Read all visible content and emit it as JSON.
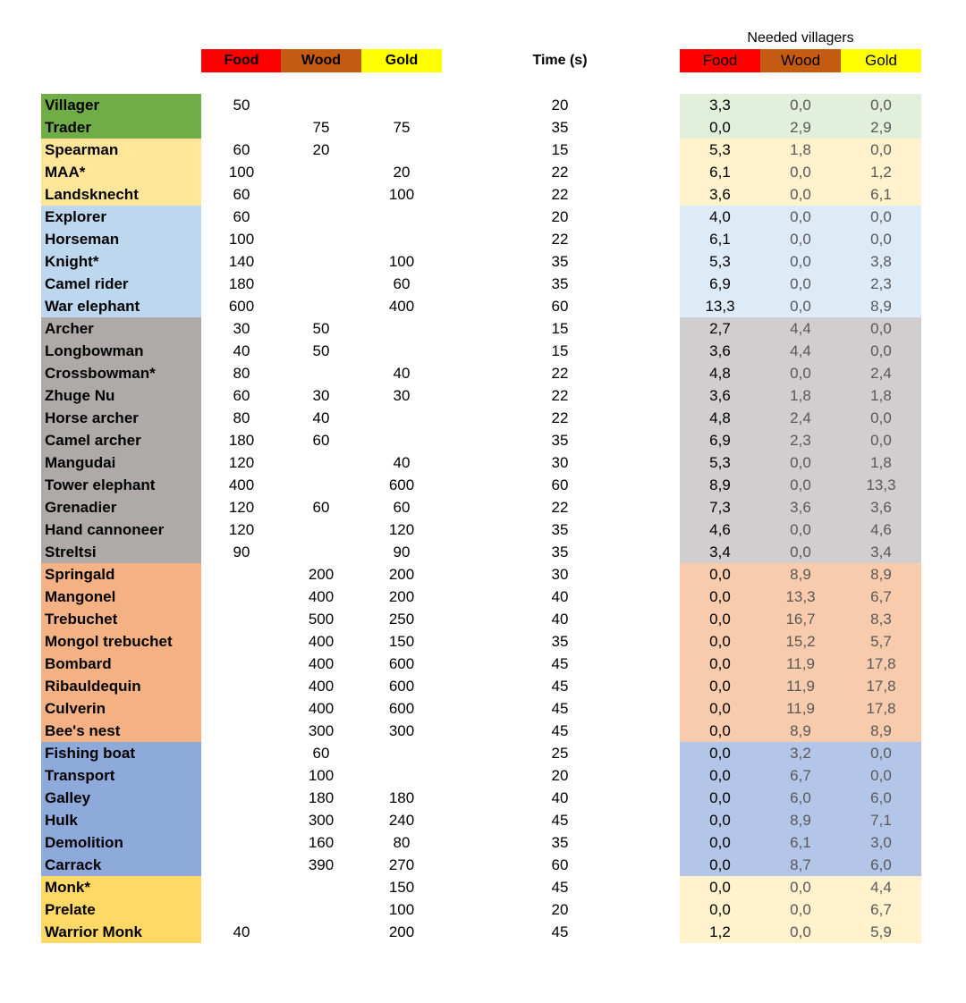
{
  "headers": {
    "food": "Food",
    "wood": "Wood",
    "gold": "Gold",
    "time": "Time (s)",
    "needed_villagers": "Needed villagers"
  },
  "groups": {
    "economy": {
      "name_color": "#70ad47",
      "right_color": "#e2efda"
    },
    "infantry": {
      "name_color": "#ffe699",
      "right_color": "#fff2cc"
    },
    "cavalry": {
      "name_color": "#bdd7ee",
      "right_color": "#ddebf7"
    },
    "ranged": {
      "name_color": "#aeaaaa",
      "right_color": "#d0cece"
    },
    "siege": {
      "name_color": "#f4b183",
      "right_color": "#f8cbad"
    },
    "naval": {
      "name_color": "#8eaadb",
      "right_color": "#b4c6e7"
    },
    "religious": {
      "name_color": "#ffd966",
      "right_color": "#fff2cc"
    }
  },
  "units": [
    {
      "name": "Villager",
      "group": "economy",
      "food": "50",
      "wood": "",
      "gold": "",
      "time": "20",
      "v_food": "3,3",
      "v_wood": "0,0",
      "v_gold": "0,0"
    },
    {
      "name": "Trader",
      "group": "economy",
      "food": "",
      "wood": "75",
      "gold": "75",
      "time": "35",
      "v_food": "0,0",
      "v_wood": "2,9",
      "v_gold": "2,9"
    },
    {
      "name": "Spearman",
      "group": "infantry",
      "food": "60",
      "wood": "20",
      "gold": "",
      "time": "15",
      "v_food": "5,3",
      "v_wood": "1,8",
      "v_gold": "0,0"
    },
    {
      "name": "MAA*",
      "group": "infantry",
      "food": "100",
      "wood": "",
      "gold": "20",
      "time": "22",
      "v_food": "6,1",
      "v_wood": "0,0",
      "v_gold": "1,2"
    },
    {
      "name": "Landsknecht",
      "group": "infantry",
      "food": "60",
      "wood": "",
      "gold": "100",
      "time": "22",
      "v_food": "3,6",
      "v_wood": "0,0",
      "v_gold": "6,1"
    },
    {
      "name": "Explorer",
      "group": "cavalry",
      "food": "60",
      "wood": "",
      "gold": "",
      "time": "20",
      "v_food": "4,0",
      "v_wood": "0,0",
      "v_gold": "0,0"
    },
    {
      "name": "Horseman",
      "group": "cavalry",
      "food": "100",
      "wood": "",
      "gold": "",
      "time": "22",
      "v_food": "6,1",
      "v_wood": "0,0",
      "v_gold": "0,0"
    },
    {
      "name": "Knight*",
      "group": "cavalry",
      "food": "140",
      "wood": "",
      "gold": "100",
      "time": "35",
      "v_food": "5,3",
      "v_wood": "0,0",
      "v_gold": "3,8"
    },
    {
      "name": "Camel rider",
      "group": "cavalry",
      "food": "180",
      "wood": "",
      "gold": "60",
      "time": "35",
      "v_food": "6,9",
      "v_wood": "0,0",
      "v_gold": "2,3"
    },
    {
      "name": "War elephant",
      "group": "cavalry",
      "food": "600",
      "wood": "",
      "gold": "400",
      "time": "60",
      "v_food": "13,3",
      "v_wood": "0,0",
      "v_gold": "8,9"
    },
    {
      "name": "Archer",
      "group": "ranged",
      "food": "30",
      "wood": "50",
      "gold": "",
      "time": "15",
      "v_food": "2,7",
      "v_wood": "4,4",
      "v_gold": "0,0"
    },
    {
      "name": "Longbowman",
      "group": "ranged",
      "food": "40",
      "wood": "50",
      "gold": "",
      "time": "15",
      "v_food": "3,6",
      "v_wood": "4,4",
      "v_gold": "0,0"
    },
    {
      "name": "Crossbowman*",
      "group": "ranged",
      "food": "80",
      "wood": "",
      "gold": "40",
      "time": "22",
      "v_food": "4,8",
      "v_wood": "0,0",
      "v_gold": "2,4"
    },
    {
      "name": "Zhuge Nu",
      "group": "ranged",
      "food": "60",
      "wood": "30",
      "gold": "30",
      "time": "22",
      "v_food": "3,6",
      "v_wood": "1,8",
      "v_gold": "1,8"
    },
    {
      "name": "Horse archer",
      "group": "ranged",
      "food": "80",
      "wood": "40",
      "gold": "",
      "time": "22",
      "v_food": "4,8",
      "v_wood": "2,4",
      "v_gold": "0,0"
    },
    {
      "name": "Camel archer",
      "group": "ranged",
      "food": "180",
      "wood": "60",
      "gold": "",
      "time": "35",
      "v_food": "6,9",
      "v_wood": "2,3",
      "v_gold": "0,0"
    },
    {
      "name": "Mangudai",
      "group": "ranged",
      "food": "120",
      "wood": "",
      "gold": "40",
      "time": "30",
      "v_food": "5,3",
      "v_wood": "0,0",
      "v_gold": "1,8"
    },
    {
      "name": "Tower elephant",
      "group": "ranged",
      "food": "400",
      "wood": "",
      "gold": "600",
      "time": "60",
      "v_food": "8,9",
      "v_wood": "0,0",
      "v_gold": "13,3"
    },
    {
      "name": "Grenadier",
      "group": "ranged",
      "food": "120",
      "wood": "60",
      "gold": "60",
      "time": "22",
      "v_food": "7,3",
      "v_wood": "3,6",
      "v_gold": "3,6"
    },
    {
      "name": "Hand cannoneer",
      "group": "ranged",
      "food": "120",
      "wood": "",
      "gold": "120",
      "time": "35",
      "v_food": "4,6",
      "v_wood": "0,0",
      "v_gold": "4,6"
    },
    {
      "name": "Streltsi",
      "group": "ranged",
      "food": "90",
      "wood": "",
      "gold": "90",
      "time": "35",
      "v_food": "3,4",
      "v_wood": "0,0",
      "v_gold": "3,4"
    },
    {
      "name": "Springald",
      "group": "siege",
      "food": "",
      "wood": "200",
      "gold": "200",
      "time": "30",
      "v_food": "0,0",
      "v_wood": "8,9",
      "v_gold": "8,9"
    },
    {
      "name": "Mangonel",
      "group": "siege",
      "food": "",
      "wood": "400",
      "gold": "200",
      "time": "40",
      "v_food": "0,0",
      "v_wood": "13,3",
      "v_gold": "6,7"
    },
    {
      "name": "Trebuchet",
      "group": "siege",
      "food": "",
      "wood": "500",
      "gold": "250",
      "time": "40",
      "v_food": "0,0",
      "v_wood": "16,7",
      "v_gold": "8,3"
    },
    {
      "name": " Mongol trebuchet",
      "group": "siege",
      "food": "",
      "wood": "400",
      "gold": "150",
      "time": "35",
      "v_food": "0,0",
      "v_wood": "15,2",
      "v_gold": "5,7"
    },
    {
      "name": "Bombard",
      "group": "siege",
      "food": "",
      "wood": "400",
      "gold": "600",
      "time": "45",
      "v_food": "0,0",
      "v_wood": "11,9",
      "v_gold": "17,8"
    },
    {
      "name": "Ribauldequin",
      "group": "siege",
      "food": "",
      "wood": "400",
      "gold": "600",
      "time": "45",
      "v_food": "0,0",
      "v_wood": "11,9",
      "v_gold": "17,8"
    },
    {
      "name": "Culverin",
      "group": "siege",
      "food": "",
      "wood": "400",
      "gold": "600",
      "time": "45",
      "v_food": "0,0",
      "v_wood": "11,9",
      "v_gold": "17,8"
    },
    {
      "name": "Bee's nest",
      "group": "siege",
      "food": "",
      "wood": "300",
      "gold": "300",
      "time": "45",
      "v_food": "0,0",
      "v_wood": "8,9",
      "v_gold": "8,9"
    },
    {
      "name": "Fishing boat",
      "group": "naval",
      "food": "",
      "wood": "60",
      "gold": "",
      "time": "25",
      "v_food": "0,0",
      "v_wood": "3,2",
      "v_gold": "0,0"
    },
    {
      "name": "Transport",
      "group": "naval",
      "food": "",
      "wood": "100",
      "gold": "",
      "time": "20",
      "v_food": "0,0",
      "v_wood": "6,7",
      "v_gold": "0,0"
    },
    {
      "name": "Galley",
      "group": "naval",
      "food": "",
      "wood": "180",
      "gold": "180",
      "time": "40",
      "v_food": "0,0",
      "v_wood": "6,0",
      "v_gold": "6,0"
    },
    {
      "name": "Hulk",
      "group": "naval",
      "food": "",
      "wood": "300",
      "gold": "240",
      "time": "45",
      "v_food": "0,0",
      "v_wood": "8,9",
      "v_gold": "7,1"
    },
    {
      "name": "Demolition",
      "group": "naval",
      "food": "",
      "wood": "160",
      "gold": "80",
      "time": "35",
      "v_food": "0,0",
      "v_wood": "6,1",
      "v_gold": "3,0"
    },
    {
      "name": "Carrack",
      "group": "naval",
      "food": "",
      "wood": "390",
      "gold": "270",
      "time": "60",
      "v_food": "0,0",
      "v_wood": "8,7",
      "v_gold": "6,0"
    },
    {
      "name": "Monk*",
      "group": "religious",
      "food": "",
      "wood": "",
      "gold": "150",
      "time": "45",
      "v_food": "0,0",
      "v_wood": "0,0",
      "v_gold": "4,4"
    },
    {
      "name": "Prelate",
      "group": "religious",
      "food": "",
      "wood": "",
      "gold": "100",
      "time": "20",
      "v_food": "0,0",
      "v_wood": "0,0",
      "v_gold": "6,7"
    },
    {
      "name": "Warrior Monk",
      "group": "religious",
      "food": "40",
      "wood": "",
      "gold": "200",
      "time": "45",
      "v_food": "1,2",
      "v_wood": "0,0",
      "v_gold": "5,9"
    }
  ]
}
